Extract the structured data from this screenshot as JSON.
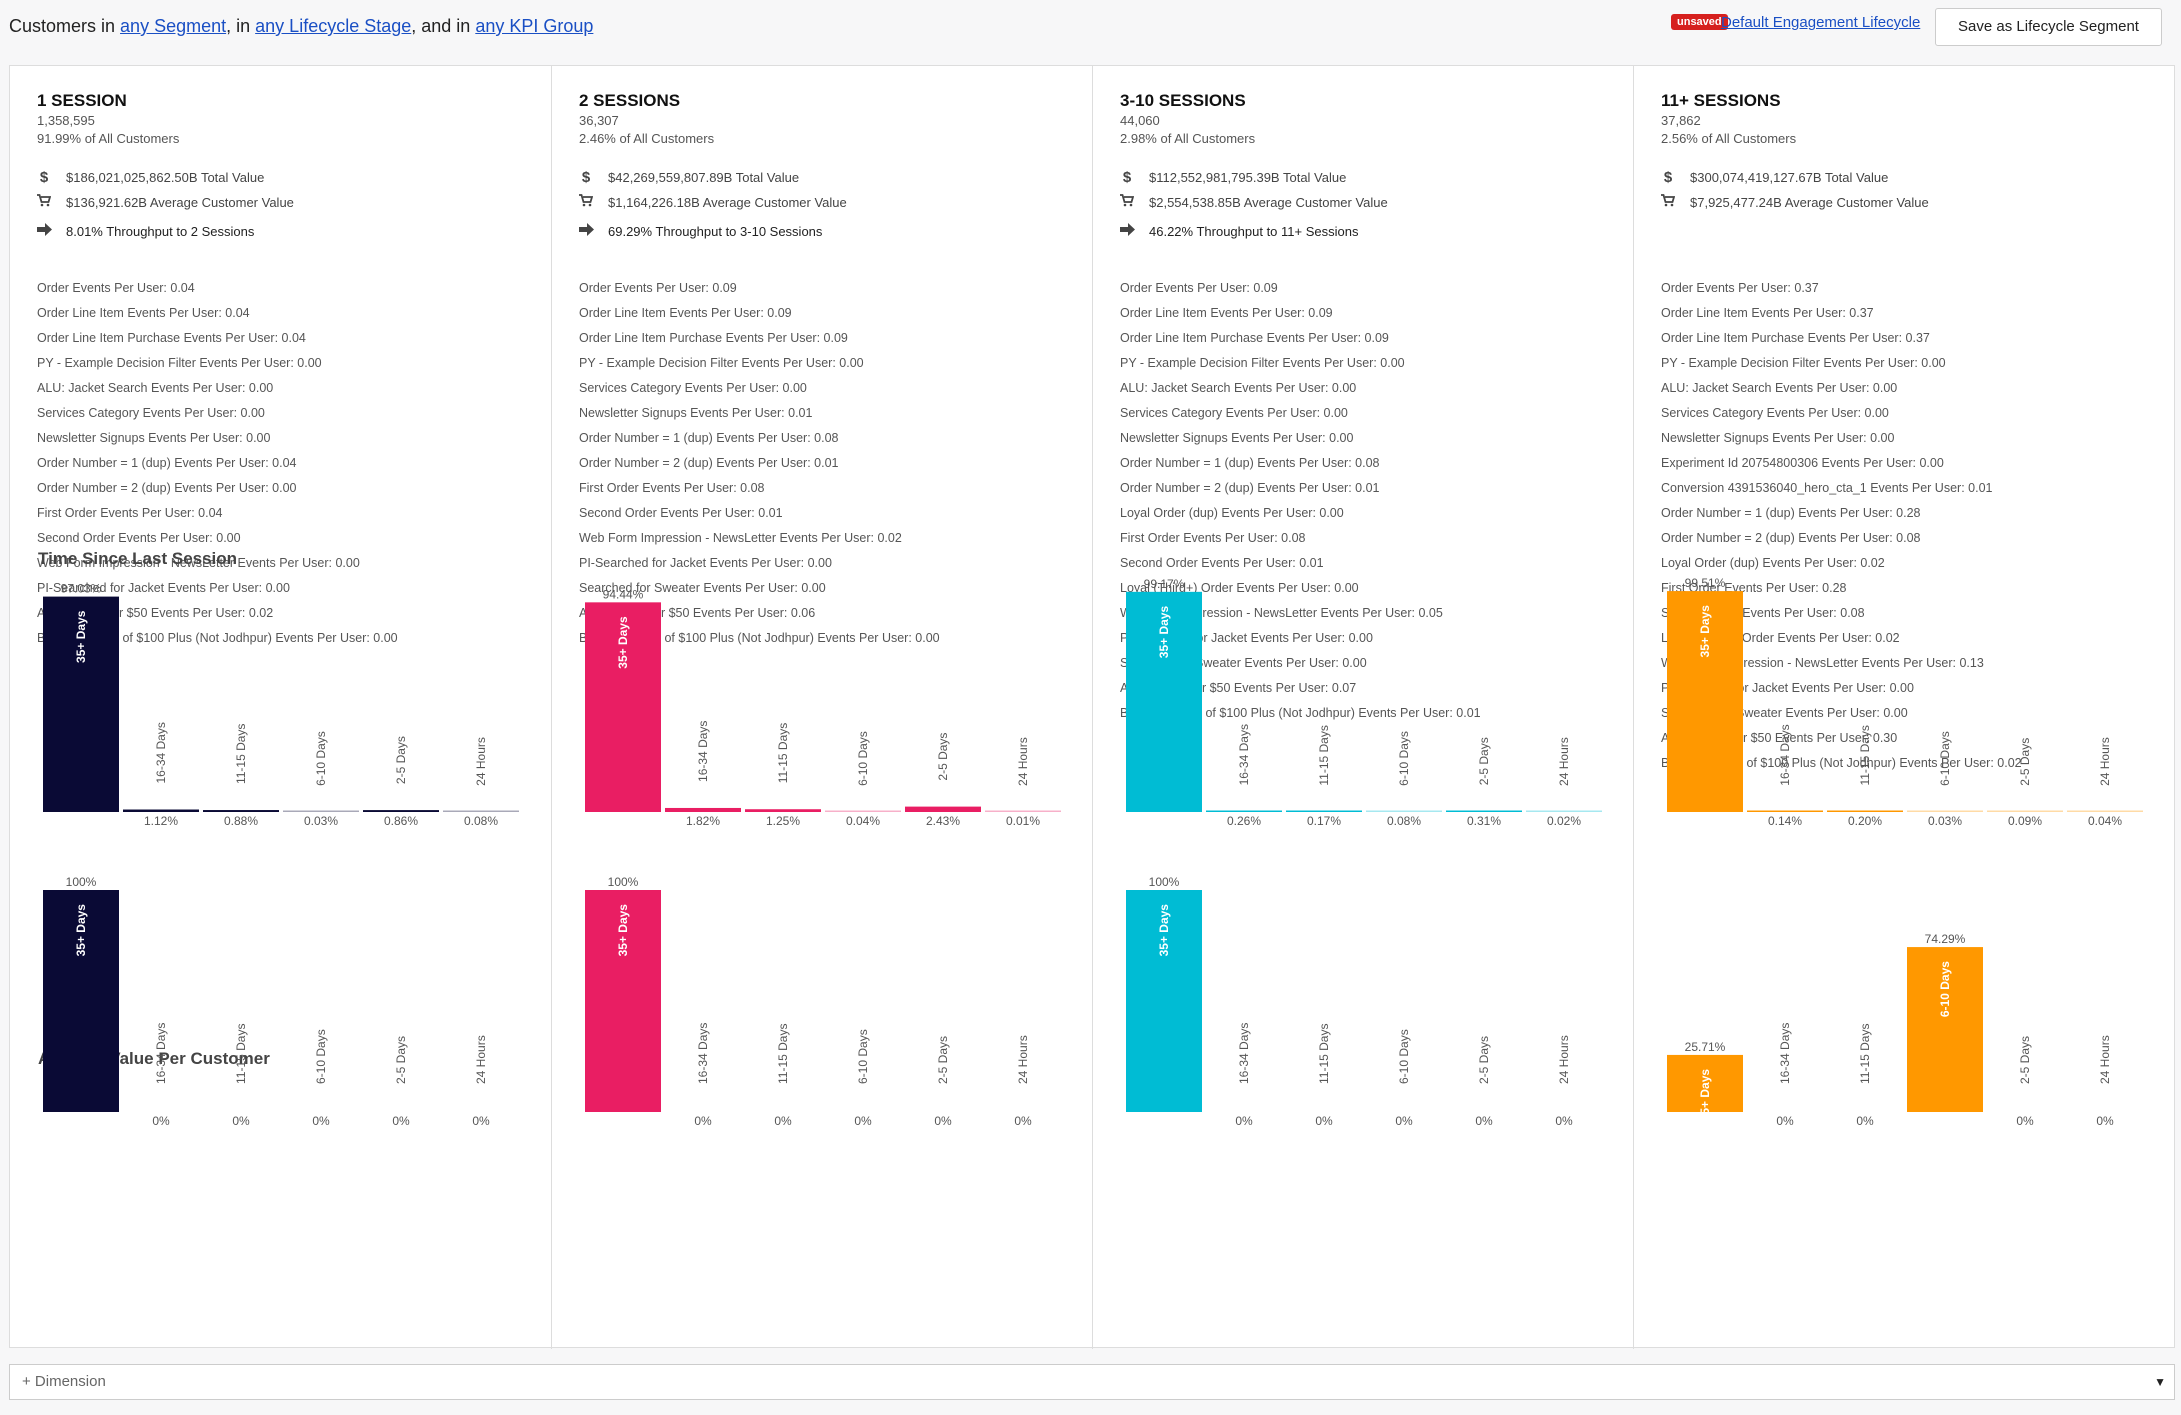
{
  "filter": {
    "prefix": "Customers in",
    "segment": "any Segment",
    "mid1": ", in",
    "lifecycle_stage": "any Lifecycle Stage",
    "mid2": ", and in",
    "kpi_group": "any KPI Group"
  },
  "header": {
    "unsaved_badge": "unsaved",
    "lifecycle_link": "Default Engagement Lifecycle",
    "save_button": "Save as Lifecycle Segment"
  },
  "section_titles": {
    "time_since": "Time Since Last Session",
    "avg_value": "Average Value Per Customer"
  },
  "add_dimension": {
    "label": "+ Dimension"
  },
  "columns": [
    {
      "title": "1 SESSION",
      "count": "1,358,595",
      "pct_all": "91.99% of All Customers",
      "total_value": "$186,021,025,862.50B Total Value",
      "avg_value": "$136,921.62B Average Customer Value",
      "throughput": "8.01% Throughput to 2 Sessions",
      "color": "#0a0a35",
      "metrics": [
        "Order Events Per User: 0.04",
        "Order Line Item Events Per User: 0.04",
        "Order Line Item Purchase Events Per User: 0.04",
        "PY - Example Decision Filter Events Per User: 0.00",
        "ALU: Jacket Search Events Per User: 0.00",
        "Services Category Events Per User: 0.00",
        "Newsletter Signups Events Per User: 0.00",
        "Order Number = 1 (dup) Events Per User: 0.04",
        "Order Number = 2 (dup) Events Per User: 0.00",
        "First Order Events Per User: 0.04",
        "Second Order Events Per User: 0.00",
        "Web Form Impression - NewsLetter Events Per User: 0.00",
        "PI-Searched for Jacket Events Per User: 0.00",
        "All Orders Over $50 Events Per User: 0.02",
        "Boot Purchase of $100 Plus (Not Jodhpur) Events Per User: 0.00"
      ],
      "time_since": [
        {
          "label": "35+ Days",
          "value": 97.03,
          "text": "97.03%"
        },
        {
          "label": "16-34 Days",
          "value": 1.12,
          "text": "1.12%"
        },
        {
          "label": "11-15 Days",
          "value": 0.88,
          "text": "0.88%"
        },
        {
          "label": "6-10 Days",
          "value": 0.03,
          "text": "0.03%"
        },
        {
          "label": "2-5 Days",
          "value": 0.86,
          "text": "0.86%"
        },
        {
          "label": "24 Hours",
          "value": 0.08,
          "text": "0.08%"
        }
      ],
      "avg_value_chart": [
        {
          "label": "35+ Days",
          "value": 100,
          "text": "100%"
        },
        {
          "label": "16-34 Days",
          "value": 0,
          "text": "0%"
        },
        {
          "label": "11-15 Days",
          "value": 0,
          "text": "0%"
        },
        {
          "label": "6-10 Days",
          "value": 0,
          "text": "0%"
        },
        {
          "label": "2-5 Days",
          "value": 0,
          "text": "0%"
        },
        {
          "label": "24 Hours",
          "value": 0,
          "text": "0%"
        }
      ]
    },
    {
      "title": "2 SESSIONS",
      "count": "36,307",
      "pct_all": "2.46% of All Customers",
      "total_value": "$42,269,559,807.89B Total Value",
      "avg_value": "$1,164,226.18B Average Customer Value",
      "throughput": "69.29% Throughput to 3-10 Sessions",
      "color": "#e91e63",
      "metrics": [
        "Order Events Per User: 0.09",
        "Order Line Item Events Per User: 0.09",
        "Order Line Item Purchase Events Per User: 0.09",
        "PY - Example Decision Filter Events Per User: 0.00",
        "Services Category Events Per User: 0.00",
        "Newsletter Signups Events Per User: 0.01",
        "Order Number = 1 (dup) Events Per User: 0.08",
        "Order Number = 2 (dup) Events Per User: 0.01",
        "First Order Events Per User: 0.08",
        "Second Order Events Per User: 0.01",
        "Web Form Impression - NewsLetter Events Per User: 0.02",
        "PI-Searched for Jacket Events Per User: 0.00",
        "Searched for Sweater Events Per User: 0.00",
        "All Orders Over $50 Events Per User: 0.06",
        "Boot Purchase of $100 Plus (Not Jodhpur) Events Per User: 0.00"
      ],
      "time_since": [
        {
          "label": "35+ Days",
          "value": 94.44,
          "text": "94.44%"
        },
        {
          "label": "16-34 Days",
          "value": 1.82,
          "text": "1.82%"
        },
        {
          "label": "11-15 Days",
          "value": 1.25,
          "text": "1.25%"
        },
        {
          "label": "6-10 Days",
          "value": 0.04,
          "text": "0.04%"
        },
        {
          "label": "2-5 Days",
          "value": 2.43,
          "text": "2.43%"
        },
        {
          "label": "24 Hours",
          "value": 0.01,
          "text": "0.01%"
        }
      ],
      "avg_value_chart": [
        {
          "label": "35+ Days",
          "value": 100,
          "text": "100%"
        },
        {
          "label": "16-34 Days",
          "value": 0,
          "text": "0%"
        },
        {
          "label": "11-15 Days",
          "value": 0,
          "text": "0%"
        },
        {
          "label": "6-10 Days",
          "value": 0,
          "text": "0%"
        },
        {
          "label": "2-5 Days",
          "value": 0,
          "text": "0%"
        },
        {
          "label": "24 Hours",
          "value": 0,
          "text": "0%"
        }
      ]
    },
    {
      "title": "3-10 SESSIONS",
      "count": "44,060",
      "pct_all": "2.98% of All Customers",
      "total_value": "$112,552,981,795.39B Total Value",
      "avg_value": "$2,554,538.85B Average Customer Value",
      "throughput": "46.22% Throughput to 11+ Sessions",
      "color": "#00bcd4",
      "metrics": [
        "Order Events Per User: 0.09",
        "Order Line Item Events Per User: 0.09",
        "Order Line Item Purchase Events Per User: 0.09",
        "PY - Example Decision Filter Events Per User: 0.00",
        "ALU: Jacket Search Events Per User: 0.00",
        "Services Category Events Per User: 0.00",
        "Newsletter Signups Events Per User: 0.00",
        "Order Number = 1 (dup) Events Per User: 0.08",
        "Order Number = 2 (dup) Events Per User: 0.01",
        "Loyal Order (dup) Events Per User: 0.00",
        "First Order Events Per User: 0.08",
        "Second Order Events Per User: 0.01",
        "Loyal (Third+) Order Events Per User: 0.00",
        "Web Form Impression - NewsLetter Events Per User: 0.05",
        "PI-Searched for Jacket Events Per User: 0.00",
        "Searched for Sweater Events Per User: 0.00",
        "All Orders Over $50 Events Per User: 0.07",
        "Boot Purchase of $100 Plus (Not Jodhpur) Events Per User: 0.01"
      ],
      "time_since": [
        {
          "label": "35+ Days",
          "value": 99.17,
          "text": "99.17%"
        },
        {
          "label": "16-34 Days",
          "value": 0.26,
          "text": "0.26%"
        },
        {
          "label": "11-15 Days",
          "value": 0.17,
          "text": "0.17%"
        },
        {
          "label": "6-10 Days",
          "value": 0.08,
          "text": "0.08%"
        },
        {
          "label": "2-5 Days",
          "value": 0.31,
          "text": "0.31%"
        },
        {
          "label": "24 Hours",
          "value": 0.02,
          "text": "0.02%"
        }
      ],
      "avg_value_chart": [
        {
          "label": "35+ Days",
          "value": 100,
          "text": "100%"
        },
        {
          "label": "16-34 Days",
          "value": 0,
          "text": "0%"
        },
        {
          "label": "11-15 Days",
          "value": 0,
          "text": "0%"
        },
        {
          "label": "6-10 Days",
          "value": 0,
          "text": "0%"
        },
        {
          "label": "2-5 Days",
          "value": 0,
          "text": "0%"
        },
        {
          "label": "24 Hours",
          "value": 0,
          "text": "0%"
        }
      ]
    },
    {
      "title": "11+ SESSIONS",
      "count": "37,862",
      "pct_all": "2.56% of All Customers",
      "total_value": "$300,074,419,127.67B Total Value",
      "avg_value": "$7,925,477.24B Average Customer Value",
      "throughput": "",
      "color": "#ff9800",
      "metrics": [
        "Order Events Per User: 0.37",
        "Order Line Item Events Per User: 0.37",
        "Order Line Item Purchase Events Per User: 0.37",
        "PY - Example Decision Filter Events Per User: 0.00",
        "ALU: Jacket Search Events Per User: 0.00",
        "Services Category Events Per User: 0.00",
        "Newsletter Signups Events Per User: 0.00",
        "Experiment Id 20754800306 Events Per User: 0.00",
        "Conversion 4391536040_hero_cta_1 Events Per User: 0.01",
        "Order Number = 1 (dup) Events Per User: 0.28",
        "Order Number = 2 (dup) Events Per User: 0.08",
        "Loyal Order (dup) Events Per User: 0.02",
        "First Order Events Per User: 0.28",
        "Second Order Events Per User: 0.08",
        "Loyal (Third+) Order Events Per User: 0.02",
        "Web Form Impression - NewsLetter Events Per User: 0.13",
        "PI-Searched for Jacket Events Per User: 0.00",
        "Searched for Sweater Events Per User: 0.00",
        "All Orders Over $50 Events Per User: 0.30",
        "Boot Purchase of $100 Plus (Not Jodhpur) Events Per User: 0.02"
      ],
      "time_since": [
        {
          "label": "35+ Days",
          "value": 99.51,
          "text": "99.51%"
        },
        {
          "label": "16-34 Days",
          "value": 0.14,
          "text": "0.14%"
        },
        {
          "label": "11-15 Days",
          "value": 0.2,
          "text": "0.20%"
        },
        {
          "label": "6-10 Days",
          "value": 0.03,
          "text": "0.03%"
        },
        {
          "label": "2-5 Days",
          "value": 0.09,
          "text": "0.09%"
        },
        {
          "label": "24 Hours",
          "value": 0.04,
          "text": "0.04%"
        }
      ],
      "avg_value_chart": [
        {
          "label": "35+ Days",
          "value": 25.71,
          "text": "25.71%"
        },
        {
          "label": "16-34 Days",
          "value": 0,
          "text": "0%"
        },
        {
          "label": "11-15 Days",
          "value": 0,
          "text": "0%"
        },
        {
          "label": "6-10 Days",
          "value": 74.29,
          "text": "74.29%"
        },
        {
          "label": "2-5 Days",
          "value": 0,
          "text": "0%"
        },
        {
          "label": "24 Hours",
          "value": 0,
          "text": "0%"
        }
      ]
    }
  ],
  "chart_data": [
    {
      "type": "bar",
      "title": "Time Since Last Session",
      "series": [
        {
          "name": "1 SESSION",
          "categories": [
            "35+ Days",
            "16-34 Days",
            "11-15 Days",
            "6-10 Days",
            "2-5 Days",
            "24 Hours"
          ],
          "values": [
            97.03,
            1.12,
            0.88,
            0.03,
            0.86,
            0.08
          ]
        },
        {
          "name": "2 SESSIONS",
          "categories": [
            "35+ Days",
            "16-34 Days",
            "11-15 Days",
            "6-10 Days",
            "2-5 Days",
            "24 Hours"
          ],
          "values": [
            94.44,
            1.82,
            1.25,
            0.04,
            2.43,
            0.01
          ]
        },
        {
          "name": "3-10 SESSIONS",
          "categories": [
            "35+ Days",
            "16-34 Days",
            "11-15 Days",
            "6-10 Days",
            "2-5 Days",
            "24 Hours"
          ],
          "values": [
            99.17,
            0.26,
            0.17,
            0.08,
            0.31,
            0.02
          ]
        },
        {
          "name": "11+ SESSIONS",
          "categories": [
            "35+ Days",
            "16-34 Days",
            "11-15 Days",
            "6-10 Days",
            "2-5 Days",
            "24 Hours"
          ],
          "values": [
            99.51,
            0.14,
            0.2,
            0.03,
            0.09,
            0.04
          ]
        }
      ]
    },
    {
      "type": "bar",
      "title": "Average Value Per Customer",
      "series": [
        {
          "name": "1 SESSION",
          "categories": [
            "35+ Days",
            "16-34 Days",
            "11-15 Days",
            "6-10 Days",
            "2-5 Days",
            "24 Hours"
          ],
          "values": [
            100,
            0,
            0,
            0,
            0,
            0
          ]
        },
        {
          "name": "2 SESSIONS",
          "categories": [
            "35+ Days",
            "16-34 Days",
            "11-15 Days",
            "6-10 Days",
            "2-5 Days",
            "24 Hours"
          ],
          "values": [
            100,
            0,
            0,
            0,
            0,
            0
          ]
        },
        {
          "name": "3-10 SESSIONS",
          "categories": [
            "35+ Days",
            "16-34 Days",
            "11-15 Days",
            "6-10 Days",
            "2-5 Days",
            "24 Hours"
          ],
          "values": [
            100,
            0,
            0,
            0,
            0,
            0
          ]
        },
        {
          "name": "11+ SESSIONS",
          "categories": [
            "35+ Days",
            "16-34 Days",
            "11-15 Days",
            "6-10 Days",
            "2-5 Days",
            "24 Hours"
          ],
          "values": [
            25.71,
            0,
            0,
            74.29,
            0,
            0
          ]
        }
      ]
    }
  ]
}
